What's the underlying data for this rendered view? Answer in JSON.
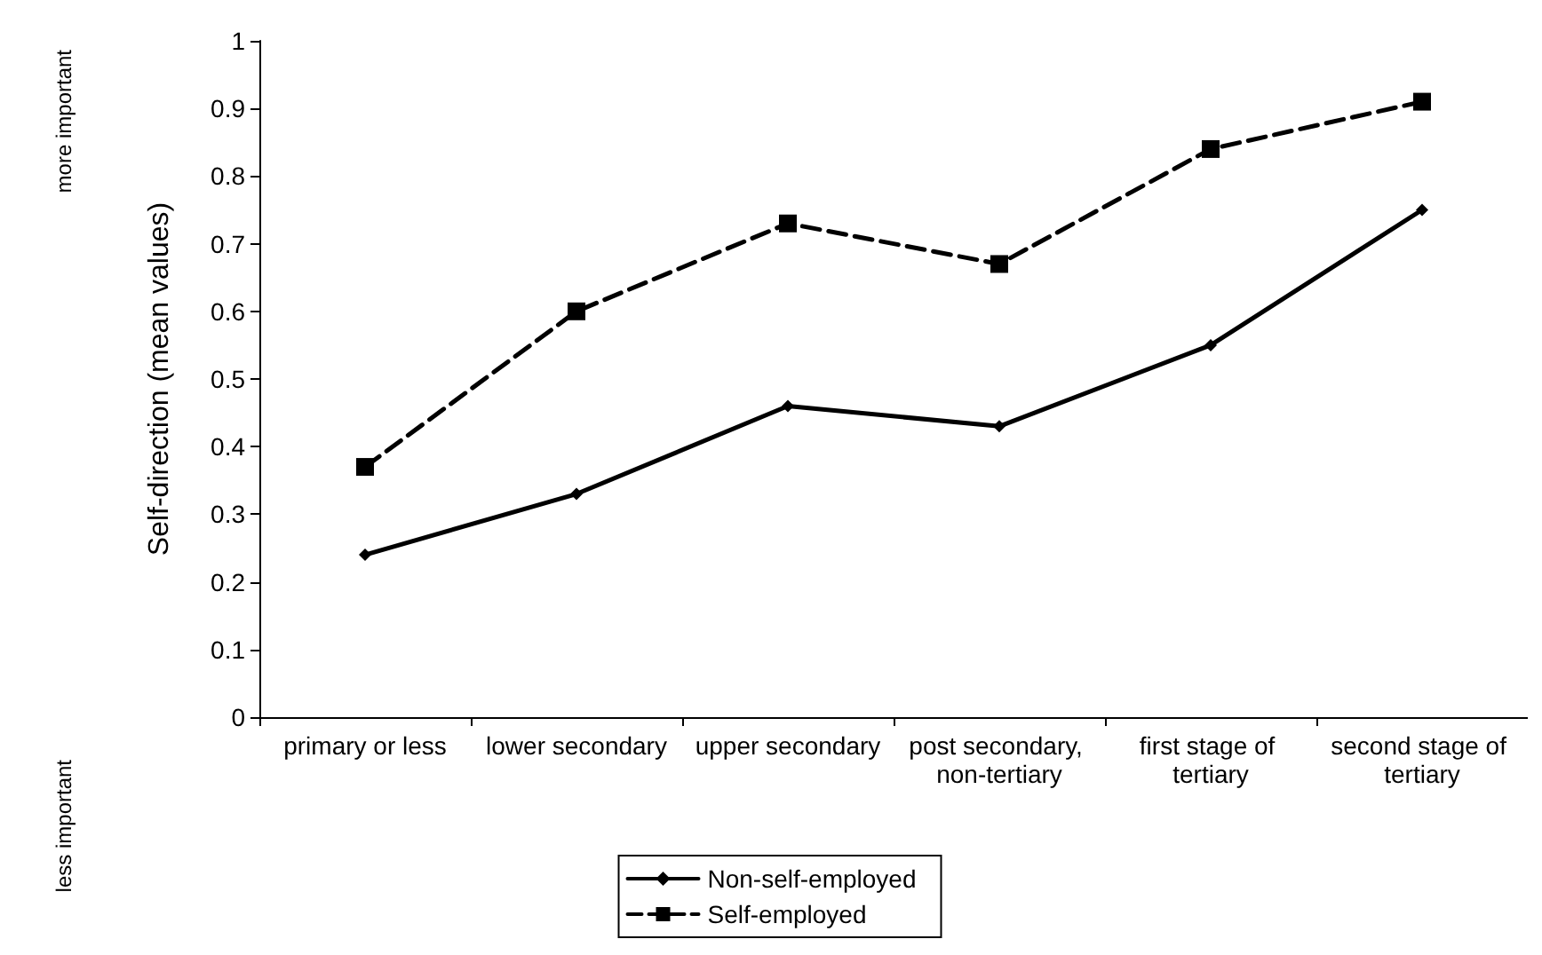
{
  "chart_data": {
    "type": "line",
    "ylabel": "Self-direction (mean values)",
    "annotations": [
      "more important",
      "less important"
    ],
    "categories": [
      "primary or less",
      "lower secondary",
      "upper secondary",
      "post secondary, non-tertiary",
      "first stage of tertiary",
      "second stage of tertiary"
    ],
    "series": [
      {
        "name": "Non-self-employed",
        "color": "#000000",
        "marker": "diamond",
        "line_style": "solid",
        "values": [
          0.24,
          0.33,
          0.46,
          0.43,
          0.55,
          0.75
        ]
      },
      {
        "name": "Self-employed",
        "color": "#000000",
        "marker": "square",
        "line_style": "dashed",
        "values": [
          0.37,
          0.6,
          0.73,
          0.67,
          0.84,
          0.91
        ]
      }
    ],
    "ylim": [
      0,
      1
    ],
    "yticks": [
      0,
      0.1,
      0.2,
      0.3,
      0.4,
      0.5,
      0.6,
      0.7,
      0.8,
      0.9,
      1
    ],
    "grid": false,
    "legend": "bottom"
  }
}
